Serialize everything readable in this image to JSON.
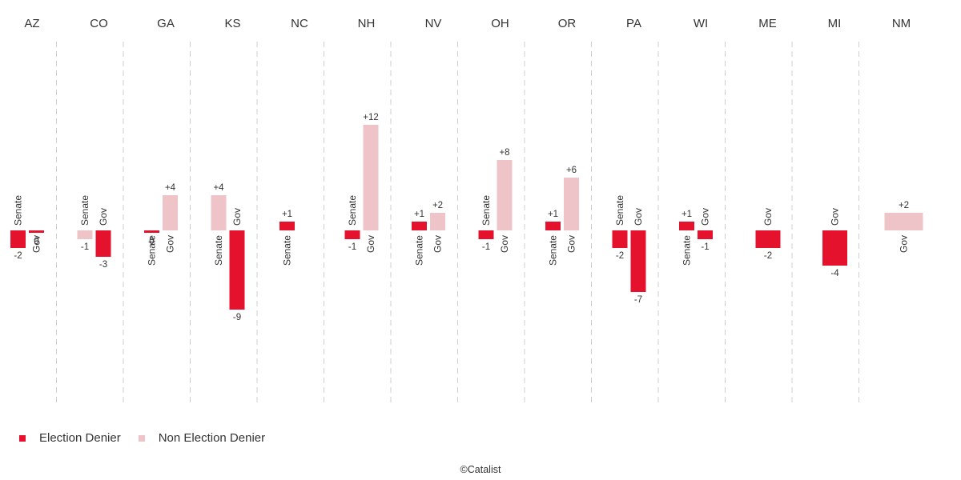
{
  "chart_data": {
    "type": "bar",
    "title": "",
    "xlabel": "",
    "ylabel": "",
    "ylim": [
      -14,
      14
    ],
    "grid": false,
    "colors": {
      "Election Denier": "#e5122d",
      "Non Election Denier": "#eec4c8"
    },
    "legend": [
      {
        "name": "Election Denier",
        "color": "#e5122d"
      },
      {
        "name": "Non Election Denier",
        "color": "#eec4c8"
      }
    ],
    "states": [
      {
        "state": "AZ",
        "races": [
          {
            "race": "Senate",
            "value": -2,
            "label": "-2",
            "group": "Election Denier"
          },
          {
            "race": "Gov",
            "value": 0,
            "label": "0",
            "group": "Election Denier"
          }
        ]
      },
      {
        "state": "CO",
        "races": [
          {
            "race": "Senate",
            "value": -1,
            "label": "-1",
            "group": "Non Election Denier"
          },
          {
            "race": "Gov",
            "value": -3,
            "label": "-3",
            "group": "Election Denier"
          }
        ]
      },
      {
        "state": "GA",
        "races": [
          {
            "race": "Senate",
            "value": 0,
            "label": "0",
            "group": "Election Denier"
          },
          {
            "race": "Gov",
            "value": 4,
            "label": "+4",
            "group": "Non Election Denier"
          }
        ]
      },
      {
        "state": "KS",
        "races": [
          {
            "race": "Senate",
            "value": 4,
            "label": "+4",
            "group": "Non Election Denier"
          },
          {
            "race": "Gov",
            "value": -9,
            "label": "-9",
            "group": "Election Denier"
          }
        ]
      },
      {
        "state": "NC",
        "races": [
          {
            "race": "Senate",
            "value": 1,
            "label": "+1",
            "group": "Election Denier"
          }
        ]
      },
      {
        "state": "NH",
        "races": [
          {
            "race": "Senate",
            "value": -1,
            "label": "-1",
            "group": "Election Denier"
          },
          {
            "race": "Gov",
            "value": 12,
            "label": "+12",
            "group": "Non Election Denier"
          }
        ]
      },
      {
        "state": "NV",
        "races": [
          {
            "race": "Senate",
            "value": 1,
            "label": "+1",
            "group": "Election Denier"
          },
          {
            "race": "Gov",
            "value": 2,
            "label": "+2",
            "group": "Non Election Denier"
          }
        ]
      },
      {
        "state": "OH",
        "races": [
          {
            "race": "Senate",
            "value": -1,
            "label": "-1",
            "group": "Election Denier"
          },
          {
            "race": "Gov",
            "value": 8,
            "label": "+8",
            "group": "Non Election Denier"
          }
        ]
      },
      {
        "state": "OR",
        "races": [
          {
            "race": "Senate",
            "value": 1,
            "label": "+1",
            "group": "Election Denier"
          },
          {
            "race": "Gov",
            "value": 6,
            "label": "+6",
            "group": "Non Election Denier"
          }
        ]
      },
      {
        "state": "PA",
        "races": [
          {
            "race": "Senate",
            "value": -2,
            "label": "-2",
            "group": "Election Denier"
          },
          {
            "race": "Gov",
            "value": -7,
            "label": "-7",
            "group": "Election Denier"
          }
        ]
      },
      {
        "state": "WI",
        "races": [
          {
            "race": "Senate",
            "value": 1,
            "label": "+1",
            "group": "Election Denier"
          },
          {
            "race": "Gov",
            "value": -1,
            "label": "-1",
            "group": "Election Denier"
          }
        ]
      },
      {
        "state": "ME",
        "races": [
          {
            "race": "Gov",
            "value": -2,
            "label": "-2",
            "group": "Election Denier"
          }
        ]
      },
      {
        "state": "MI",
        "races": [
          {
            "race": "Gov",
            "value": -4,
            "label": "-4",
            "group": "Election Denier"
          }
        ]
      },
      {
        "state": "NM",
        "races": [
          {
            "race": "Gov",
            "value": 2,
            "label": "+2",
            "group": "Non Election Denier"
          }
        ]
      }
    ]
  },
  "credit": "©Catalist"
}
